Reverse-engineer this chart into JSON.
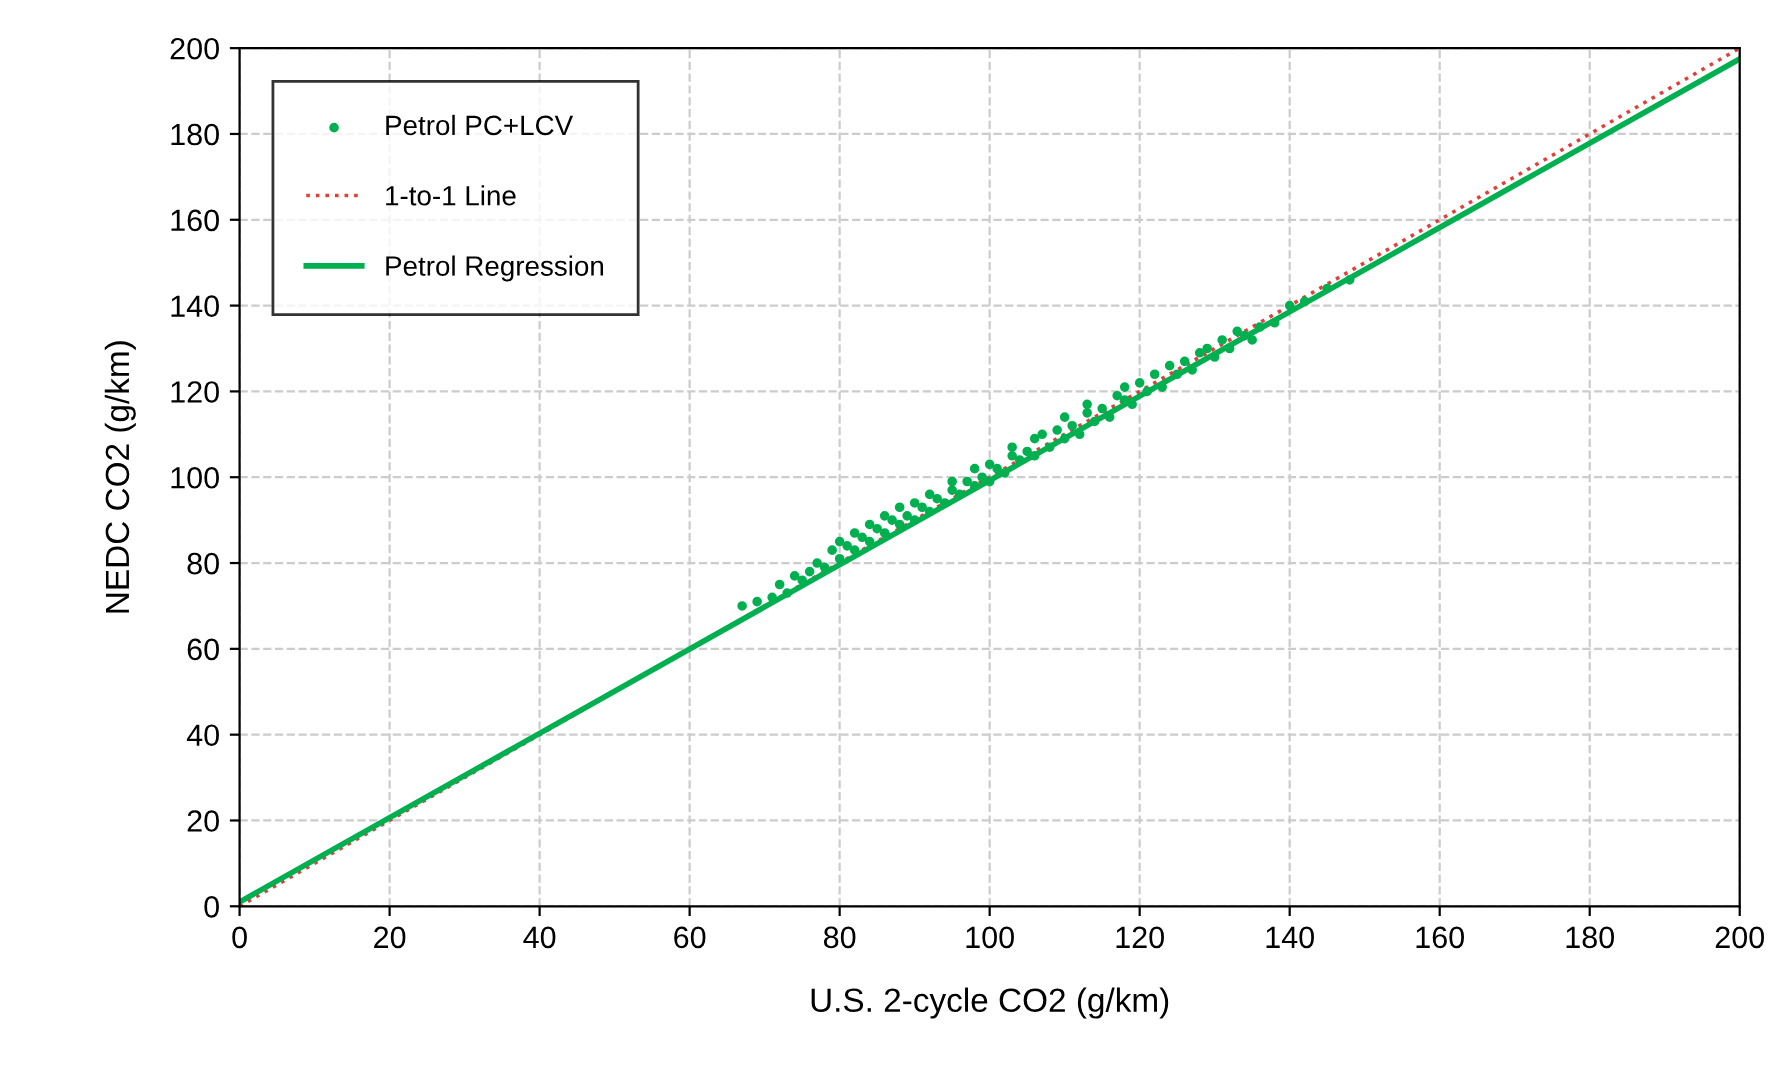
{
  "chart_data": {
    "type": "scatter",
    "xlabel": "U.S. 2-cycle CO2 (g/km)",
    "ylabel": "NEDC CO2 (g/km)",
    "xlim": [
      0,
      200
    ],
    "ylim": [
      0,
      200
    ],
    "xticks": [
      0,
      20,
      40,
      60,
      80,
      100,
      120,
      140,
      160,
      180,
      200
    ],
    "yticks": [
      0,
      20,
      40,
      60,
      80,
      100,
      120,
      140,
      160,
      180,
      200
    ],
    "grid": true,
    "legend": "top left",
    "series": [
      {
        "name": "Petrol PC+LCV",
        "marker": "circle",
        "color": "#00b050",
        "x": [
          67,
          69,
          71,
          72,
          73,
          74,
          75,
          76,
          77,
          78,
          79,
          80,
          80,
          81,
          82,
          82,
          83,
          84,
          84,
          85,
          86,
          86,
          87,
          88,
          88,
          89,
          90,
          90,
          91,
          92,
          92,
          93,
          94,
          95,
          95,
          96,
          97,
          98,
          98,
          99,
          100,
          100,
          101,
          102,
          103,
          103,
          104,
          105,
          106,
          106,
          107,
          108,
          109,
          110,
          110,
          111,
          112,
          113,
          113,
          114,
          115,
          116,
          117,
          118,
          118,
          119,
          120,
          121,
          122,
          123,
          124,
          125,
          126,
          127,
          128,
          129,
          130,
          131,
          132,
          133,
          134,
          135,
          136,
          138,
          140,
          142,
          145,
          148
        ],
        "values": [
          70,
          71,
          72,
          75,
          73,
          77,
          76,
          78,
          80,
          79,
          83,
          81,
          85,
          84,
          83,
          87,
          86,
          85,
          89,
          88,
          87,
          91,
          90,
          89,
          93,
          91,
          90,
          94,
          93,
          92,
          96,
          95,
          94,
          97,
          99,
          96,
          99,
          98,
          102,
          100,
          99,
          103,
          102,
          101,
          105,
          107,
          104,
          106,
          105,
          109,
          110,
          107,
          111,
          109,
          114,
          112,
          110,
          115,
          117,
          113,
          116,
          114,
          119,
          118,
          121,
          117,
          122,
          120,
          124,
          121,
          126,
          124,
          127,
          125,
          129,
          130,
          128,
          132,
          130,
          134,
          133,
          132,
          135,
          136,
          140,
          141,
          144,
          146
        ]
      },
      {
        "name": "1-to-1 Line",
        "type": "line",
        "color": "#e0403a",
        "line_style": "dotted",
        "x": [
          0,
          200
        ],
        "values": [
          0,
          200
        ]
      },
      {
        "name": "Petrol Regression",
        "type": "line",
        "color": "#00b050",
        "line_style": "solid",
        "x": [
          0,
          200
        ],
        "values": [
          1,
          197.5
        ]
      }
    ]
  }
}
